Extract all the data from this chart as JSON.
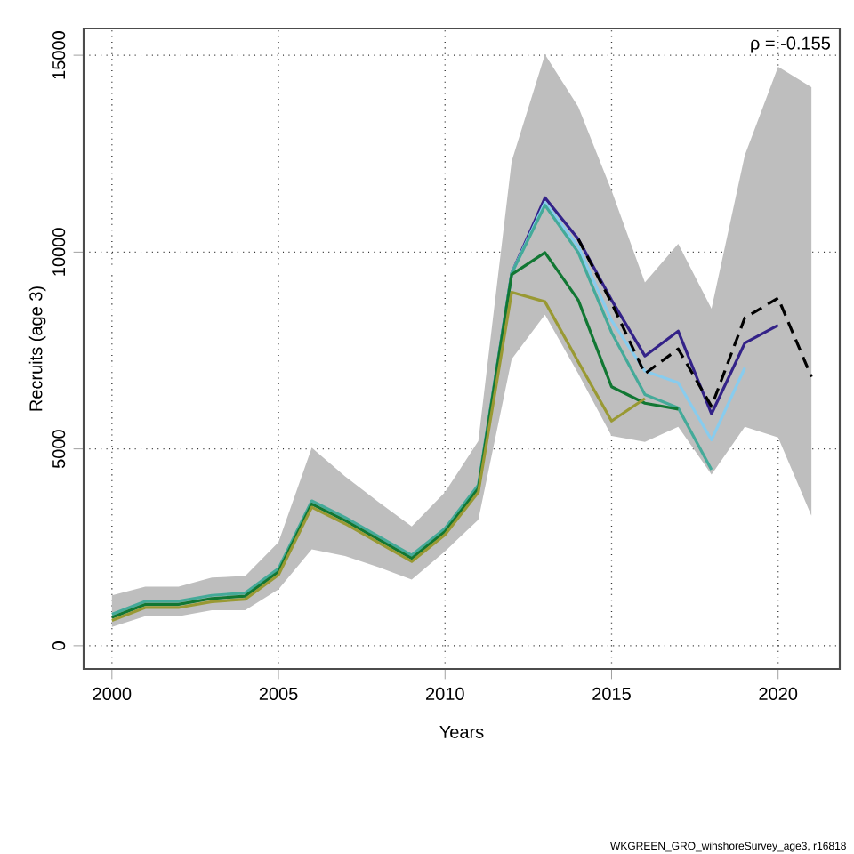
{
  "chart_data": {
    "type": "line",
    "xlabel": "Years",
    "ylabel": "Recruits (age 3)",
    "x": [
      2000,
      2001,
      2002,
      2003,
      2004,
      2005,
      2006,
      2007,
      2008,
      2009,
      2010,
      2011,
      2012,
      2013,
      2014,
      2015,
      2016,
      2017,
      2018,
      2019,
      2020,
      2021
    ],
    "series": [
      {
        "color": "#000000",
        "line_style": "dashed",
        "values": [
          null,
          null,
          null,
          null,
          null,
          null,
          null,
          null,
          null,
          null,
          null,
          null,
          null,
          null,
          10330,
          8710,
          6910,
          7540,
          6080,
          8330,
          8830,
          6830
        ],
        "upper": [
          1280,
          1500,
          1500,
          1730,
          1770,
          2630,
          5030,
          4300,
          3650,
          3030,
          3900,
          5200,
          12310,
          15020,
          13690,
          11560,
          9230,
          10210,
          8560,
          12460,
          14710,
          14190
        ],
        "lower": [
          480,
          750,
          750,
          900,
          900,
          1430,
          2450,
          2280,
          2000,
          1680,
          2400,
          3200,
          7280,
          8410,
          6910,
          5330,
          5180,
          5560,
          4350,
          5560,
          5290,
          3300
        ]
      },
      {
        "color": "#332288",
        "values": [
          null,
          null,
          null,
          null,
          null,
          null,
          null,
          null,
          null,
          null,
          null,
          4000,
          9460,
          11380,
          10330,
          8780,
          7360,
          7990,
          5890,
          7690,
          8140,
          null
        ]
      },
      {
        "color": "#88ccee",
        "values": [
          null,
          null,
          null,
          null,
          null,
          null,
          null,
          null,
          null,
          null,
          null,
          4000,
          9460,
          11260,
          10140,
          8260,
          6980,
          6680,
          5230,
          7060,
          null,
          null
        ]
      },
      {
        "color": "#44aa99",
        "values": [
          800,
          1130,
          1130,
          1280,
          1340,
          1960,
          3680,
          3260,
          2780,
          2300,
          2980,
          4080,
          9460,
          11190,
          9990,
          7960,
          6380,
          6040,
          4470,
          null,
          null,
          null
        ]
      },
      {
        "color": "#117733",
        "values": [
          720,
          1050,
          1050,
          1200,
          1260,
          1880,
          3600,
          3180,
          2700,
          2220,
          2900,
          4000,
          9430,
          9990,
          8780,
          6580,
          6160,
          6010,
          null,
          null,
          null,
          null
        ]
      },
      {
        "color": "#999933",
        "values": [
          640,
          970,
          970,
          1120,
          1180,
          1800,
          3520,
          3100,
          2620,
          2140,
          2820,
          3900,
          8980,
          8740,
          7210,
          5710,
          6280,
          null,
          null,
          null,
          null,
          null
        ]
      }
    ],
    "xlim": [
      1999.15,
      2021.85
    ],
    "ylim": [
      -590,
      15680
    ],
    "xticks": [
      2000,
      2005,
      2010,
      2015,
      2020
    ],
    "yticks": [
      0,
      5000,
      10000,
      15000
    ],
    "grid": true,
    "marker": "none",
    "line_style": "solid",
    "annotations": [
      "ρ = -0.155",
      "WKGREEN_GRO_wihshoreSurvey_age3, r16818"
    ]
  }
}
